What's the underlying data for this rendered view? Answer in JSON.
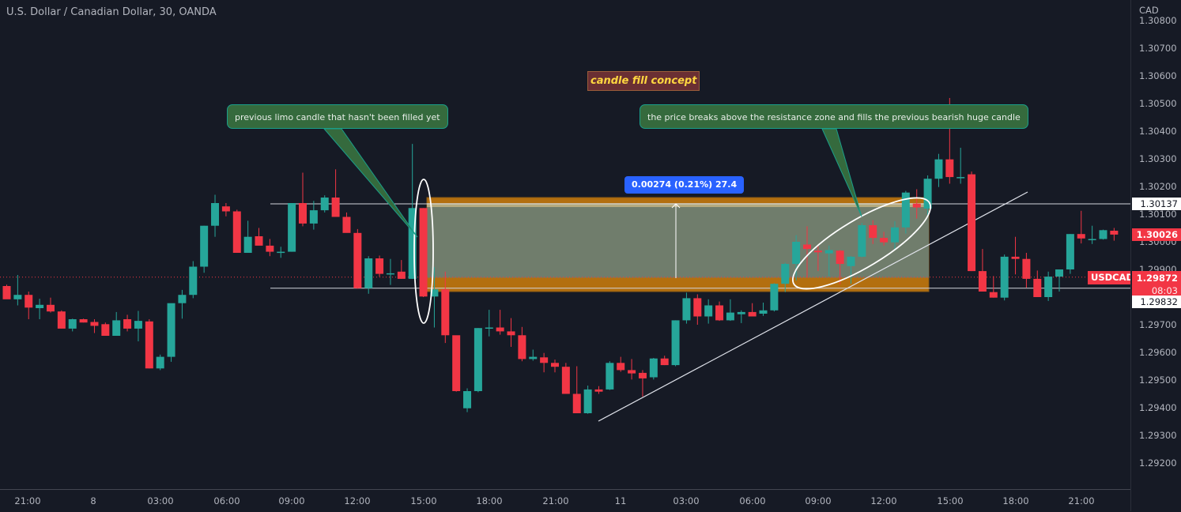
{
  "header": {
    "title": "U.S. Dollar / Canadian Dollar, 30, OANDA"
  },
  "price_axis": {
    "currency": "CAD",
    "ticks": [
      "1.30800",
      "1.30700",
      "1.30600",
      "1.30500",
      "1.30400",
      "1.30300",
      "1.30200",
      "1.30100",
      "1.30000",
      "1.29900",
      "1.29700",
      "1.29600",
      "1.29500",
      "1.29400",
      "1.29300",
      "1.29200"
    ],
    "labels": {
      "resistance_top": "1.30137",
      "crosshair_price": "1.30026",
      "last_price": "1.29872",
      "countdown": "08:03",
      "support_bottom": "1.29832"
    }
  },
  "time_axis": {
    "ticks": [
      "21:00",
      "8",
      "03:00",
      "06:00",
      "09:00",
      "12:00",
      "15:00",
      "18:00",
      "21:00",
      "11",
      "03:00",
      "06:00",
      "09:00",
      "12:00",
      "15:00",
      "18:00",
      "21:00"
    ]
  },
  "symbol_label": "USDCAD",
  "annotations": {
    "title_label": "candle fill concept",
    "note_left": "previous limo candle that hasn't been filled yet",
    "note_right": "the price breaks above the resistance zone and fills the previous bearish huge candle",
    "measure": "0.00274 (0.21%) 27.4"
  },
  "colors": {
    "background": "#161a25",
    "bull": "#26a69a",
    "bear": "#f23645",
    "zone_band": "#b36f0f",
    "zone_fill": "#6d7d72",
    "note_bg": "#356a3d",
    "note_border": "#1a9e8a",
    "measure_bg": "#2962ff",
    "concept_text": "#ffd740"
  },
  "chart_data": {
    "type": "candlestick",
    "title": "U.S. Dollar / Canadian Dollar, 30, OANDA",
    "symbol": "USDCAD",
    "timeframe": "30",
    "xlabel": "",
    "ylabel": "CAD",
    "ylim": [
      1.2915,
      1.3083
    ],
    "grid": false,
    "x_ticks": [
      "21:00",
      "8",
      "03:00",
      "06:00",
      "09:00",
      "12:00",
      "15:00",
      "18:00",
      "21:00",
      "11",
      "03:00",
      "06:00",
      "09:00",
      "12:00",
      "15:00",
      "18:00",
      "21:00"
    ],
    "candles": [
      {
        "o": 1.2984,
        "h": 1.29845,
        "l": 1.29807,
        "c": 1.29792
      },
      {
        "o": 1.29792,
        "h": 1.2988,
        "l": 1.2977,
        "c": 1.29808
      },
      {
        "o": 1.29808,
        "h": 1.2982,
        "l": 1.2972,
        "c": 1.29762
      },
      {
        "o": 1.2976,
        "h": 1.29794,
        "l": 1.2972,
        "c": 1.29772
      },
      {
        "o": 1.29772,
        "h": 1.29798,
        "l": 1.29744,
        "c": 1.29748
      },
      {
        "o": 1.29748,
        "h": 1.29752,
        "l": 1.29686,
        "c": 1.29686
      },
      {
        "o": 1.29686,
        "h": 1.29722,
        "l": 1.29676,
        "c": 1.2972
      },
      {
        "o": 1.2972,
        "h": 1.29722,
        "l": 1.29708,
        "c": 1.29708
      },
      {
        "o": 1.2971,
        "h": 1.2972,
        "l": 1.2967,
        "c": 1.29696
      },
      {
        "o": 1.29702,
        "h": 1.29708,
        "l": 1.2966,
        "c": 1.2966
      },
      {
        "o": 1.2966,
        "h": 1.29746,
        "l": 1.2966,
        "c": 1.29716
      },
      {
        "o": 1.2972,
        "h": 1.29736,
        "l": 1.29676,
        "c": 1.29686
      },
      {
        "o": 1.29686,
        "h": 1.2975,
        "l": 1.2964,
        "c": 1.29714
      },
      {
        "o": 1.29712,
        "h": 1.2972,
        "l": 1.29542,
        "c": 1.29542
      },
      {
        "o": 1.29542,
        "h": 1.29592,
        "l": 1.29536,
        "c": 1.29584
      },
      {
        "o": 1.29584,
        "h": 1.29734,
        "l": 1.29566,
        "c": 1.29778
      },
      {
        "o": 1.29778,
        "h": 1.29826,
        "l": 1.29722,
        "c": 1.29808
      },
      {
        "o": 1.29808,
        "h": 1.2993,
        "l": 1.29796,
        "c": 1.2991
      },
      {
        "o": 1.2991,
        "h": 1.30058,
        "l": 1.29888,
        "c": 1.30058
      },
      {
        "o": 1.30058,
        "h": 1.3017,
        "l": 1.30018,
        "c": 1.3014
      },
      {
        "o": 1.30128,
        "h": 1.3014,
        "l": 1.30092,
        "c": 1.3011
      },
      {
        "o": 1.3011,
        "h": 1.30116,
        "l": 1.2996,
        "c": 1.2996
      },
      {
        "o": 1.2996,
        "h": 1.30076,
        "l": 1.2996,
        "c": 1.30018
      },
      {
        "o": 1.3002,
        "h": 1.3005,
        "l": 1.29988,
        "c": 1.29986
      },
      {
        "o": 1.29986,
        "h": 1.3001,
        "l": 1.29948,
        "c": 1.29964
      },
      {
        "o": 1.29964,
        "h": 1.29982,
        "l": 1.29942,
        "c": 1.29964
      },
      {
        "o": 1.29964,
        "h": 1.3014,
        "l": 1.29964,
        "c": 1.3014
      },
      {
        "o": 1.3014,
        "h": 1.3025,
        "l": 1.30056,
        "c": 1.30066
      },
      {
        "o": 1.30066,
        "h": 1.30148,
        "l": 1.30044,
        "c": 1.30114
      },
      {
        "o": 1.30114,
        "h": 1.30168,
        "l": 1.30106,
        "c": 1.3016
      },
      {
        "o": 1.3016,
        "h": 1.30262,
        "l": 1.30092,
        "c": 1.3009
      },
      {
        "o": 1.3009,
        "h": 1.30106,
        "l": 1.30038,
        "c": 1.30032
      },
      {
        "o": 1.30032,
        "h": 1.30046,
        "l": 1.2983,
        "c": 1.29832
      },
      {
        "o": 1.29832,
        "h": 1.29948,
        "l": 1.29812,
        "c": 1.2994
      },
      {
        "o": 1.2994,
        "h": 1.2995,
        "l": 1.29874,
        "c": 1.29884
      },
      {
        "o": 1.29886,
        "h": 1.29938,
        "l": 1.29844,
        "c": 1.29886
      },
      {
        "o": 1.29892,
        "h": 1.29934,
        "l": 1.29866,
        "c": 1.29866
      },
      {
        "o": 1.29866,
        "h": 1.30354,
        "l": 1.29866,
        "c": 1.30122
      },
      {
        "o": 1.30122,
        "h": 1.30122,
        "l": 1.298,
        "c": 1.29802
      },
      {
        "o": 1.29802,
        "h": 1.29908,
        "l": 1.2969,
        "c": 1.29828
      },
      {
        "o": 1.29828,
        "h": 1.29892,
        "l": 1.29634,
        "c": 1.29662
      },
      {
        "o": 1.29662,
        "h": 1.2966,
        "l": 1.29458,
        "c": 1.2946
      },
      {
        "o": 1.29398,
        "h": 1.2947,
        "l": 1.29384,
        "c": 1.2946
      },
      {
        "o": 1.2946,
        "h": 1.29688,
        "l": 1.29456,
        "c": 1.29688
      },
      {
        "o": 1.29688,
        "h": 1.29754,
        "l": 1.29658,
        "c": 1.2969
      },
      {
        "o": 1.2969,
        "h": 1.29754,
        "l": 1.29664,
        "c": 1.29676
      },
      {
        "o": 1.29676,
        "h": 1.29724,
        "l": 1.2962,
        "c": 1.29662
      },
      {
        "o": 1.29662,
        "h": 1.29692,
        "l": 1.29568,
        "c": 1.29576
      },
      {
        "o": 1.29576,
        "h": 1.2961,
        "l": 1.2957,
        "c": 1.29584
      },
      {
        "o": 1.29582,
        "h": 1.29598,
        "l": 1.29528,
        "c": 1.29562
      },
      {
        "o": 1.29562,
        "h": 1.29574,
        "l": 1.29528,
        "c": 1.29548
      },
      {
        "o": 1.29548,
        "h": 1.29562,
        "l": 1.2945,
        "c": 1.2945
      },
      {
        "o": 1.2945,
        "h": 1.2955,
        "l": 1.2938,
        "c": 1.2938
      },
      {
        "o": 1.2938,
        "h": 1.2948,
        "l": 1.29378,
        "c": 1.29466
      },
      {
        "o": 1.29466,
        "h": 1.29478,
        "l": 1.2945,
        "c": 1.29458
      },
      {
        "o": 1.29466,
        "h": 1.29568,
        "l": 1.29464,
        "c": 1.29562
      },
      {
        "o": 1.29562,
        "h": 1.29584,
        "l": 1.2953,
        "c": 1.29536
      },
      {
        "o": 1.29536,
        "h": 1.29576,
        "l": 1.29502,
        "c": 1.29524
      },
      {
        "o": 1.29526,
        "h": 1.29536,
        "l": 1.2944,
        "c": 1.29506
      },
      {
        "o": 1.2951,
        "h": 1.2958,
        "l": 1.29502,
        "c": 1.29578
      },
      {
        "o": 1.29578,
        "h": 1.29588,
        "l": 1.29554,
        "c": 1.29554
      },
      {
        "o": 1.29554,
        "h": 1.29716,
        "l": 1.2955,
        "c": 1.29716
      },
      {
        "o": 1.29716,
        "h": 1.29816,
        "l": 1.29704,
        "c": 1.29796
      },
      {
        "o": 1.29796,
        "h": 1.2981,
        "l": 1.297,
        "c": 1.2973
      },
      {
        "o": 1.2973,
        "h": 1.29792,
        "l": 1.29704,
        "c": 1.2977
      },
      {
        "o": 1.2977,
        "h": 1.29784,
        "l": 1.29714,
        "c": 1.29716
      },
      {
        "o": 1.29716,
        "h": 1.29792,
        "l": 1.29714,
        "c": 1.29744
      },
      {
        "o": 1.29738,
        "h": 1.29752,
        "l": 1.29706,
        "c": 1.29746
      },
      {
        "o": 1.29746,
        "h": 1.29778,
        "l": 1.29736,
        "c": 1.2973
      },
      {
        "o": 1.2974,
        "h": 1.2978,
        "l": 1.29732,
        "c": 1.29752
      },
      {
        "o": 1.29752,
        "h": 1.2985,
        "l": 1.29748,
        "c": 1.29848
      },
      {
        "o": 1.29848,
        "h": 1.29924,
        "l": 1.29818,
        "c": 1.2992
      },
      {
        "o": 1.2992,
        "h": 1.30024,
        "l": 1.2986,
        "c": 1.3
      },
      {
        "o": 1.2999,
        "h": 1.30056,
        "l": 1.2987,
        "c": 1.29974
      },
      {
        "o": 1.29968,
        "h": 1.29984,
        "l": 1.29894,
        "c": 1.29962
      },
      {
        "o": 1.29958,
        "h": 1.29986,
        "l": 1.29874,
        "c": 1.2997
      },
      {
        "o": 1.29968,
        "h": 1.2997,
        "l": 1.29846,
        "c": 1.2992
      },
      {
        "o": 1.29912,
        "h": 1.29948,
        "l": 1.29848,
        "c": 1.29946
      },
      {
        "o": 1.29946,
        "h": 1.30068,
        "l": 1.29944,
        "c": 1.3006
      },
      {
        "o": 1.3006,
        "h": 1.30078,
        "l": 1.29992,
        "c": 1.30014
      },
      {
        "o": 1.30014,
        "h": 1.30036,
        "l": 1.29986,
        "c": 1.29998
      },
      {
        "o": 1.29998,
        "h": 1.30074,
        "l": 1.2997,
        "c": 1.30052
      },
      {
        "o": 1.30052,
        "h": 1.30184,
        "l": 1.3003,
        "c": 1.30178
      },
      {
        "o": 1.30138,
        "h": 1.3019,
        "l": 1.30084,
        "c": 1.30124
      },
      {
        "o": 1.3012,
        "h": 1.3024,
        "l": 1.30094,
        "c": 1.30228
      },
      {
        "o": 1.30228,
        "h": 1.30318,
        "l": 1.30198,
        "c": 1.30298
      },
      {
        "o": 1.30298,
        "h": 1.3052,
        "l": 1.3021,
        "c": 1.30234
      },
      {
        "o": 1.30234,
        "h": 1.3034,
        "l": 1.3021,
        "c": 1.30234
      },
      {
        "o": 1.30244,
        "h": 1.30254,
        "l": 1.29894,
        "c": 1.29894
      },
      {
        "o": 1.29894,
        "h": 1.29974,
        "l": 1.29822,
        "c": 1.2982
      },
      {
        "o": 1.29818,
        "h": 1.29876,
        "l": 1.29798,
        "c": 1.29798
      },
      {
        "o": 1.29798,
        "h": 1.29954,
        "l": 1.29788,
        "c": 1.29946
      },
      {
        "o": 1.29946,
        "h": 1.30018,
        "l": 1.29882,
        "c": 1.29938
      },
      {
        "o": 1.29938,
        "h": 1.2996,
        "l": 1.29834,
        "c": 1.29866
      },
      {
        "o": 1.29866,
        "h": 1.29896,
        "l": 1.298,
        "c": 1.298
      },
      {
        "o": 1.298,
        "h": 1.29892,
        "l": 1.29786,
        "c": 1.29874
      },
      {
        "o": 1.29874,
        "h": 1.299,
        "l": 1.2982,
        "c": 1.299
      },
      {
        "o": 1.299,
        "h": 1.30028,
        "l": 1.29884,
        "c": 1.30028
      },
      {
        "o": 1.30028,
        "h": 1.30112,
        "l": 1.29994,
        "c": 1.30012
      },
      {
        "o": 1.3001,
        "h": 1.30058,
        "l": 1.29992,
        "c": 1.3001
      },
      {
        "o": 1.3001,
        "h": 1.30044,
        "l": 1.30008,
        "c": 1.30042
      },
      {
        "o": 1.3004,
        "h": 1.3005,
        "l": 1.30004,
        "c": 1.30026
      }
    ],
    "lines": {
      "resistance_top": 1.30137,
      "support_bottom": 1.29832,
      "last_price": 1.29872
    },
    "zone": {
      "top": 1.3016,
      "bottom": 1.2982,
      "fill_from": 1.30137,
      "fill_to": 1.2987
    },
    "measure": {
      "delta": 0.00274,
      "percent": 0.21,
      "pips": 27.4
    },
    "annotations": [
      "candle fill concept",
      "previous limo candle that hasn't been filled yet",
      "the price breaks above the resistance zone and fills the previous bearish huge candle"
    ]
  }
}
